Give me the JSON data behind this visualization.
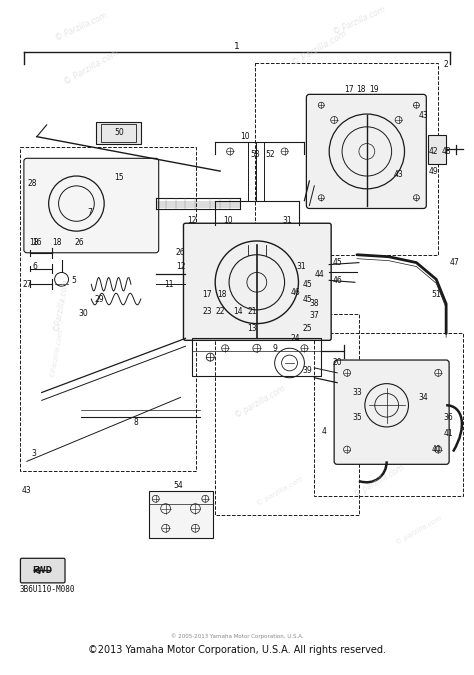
{
  "background_color": "#ffffff",
  "fig_width": 4.74,
  "fig_height": 6.75,
  "dpi": 100,
  "copyright_text": "©2013 Yamaha Motor Corporation, U.S.A. All rights reserved.",
  "copyright_small": "© 2005-2013 Yamaha Motor Corporation, U.S.A.",
  "part_number": "3B6U110-M080",
  "line_color": "#1a1a1a",
  "label_fontsize": 5.5,
  "watermark_color": "#cccccc",
  "watermark_alpha": 0.5
}
